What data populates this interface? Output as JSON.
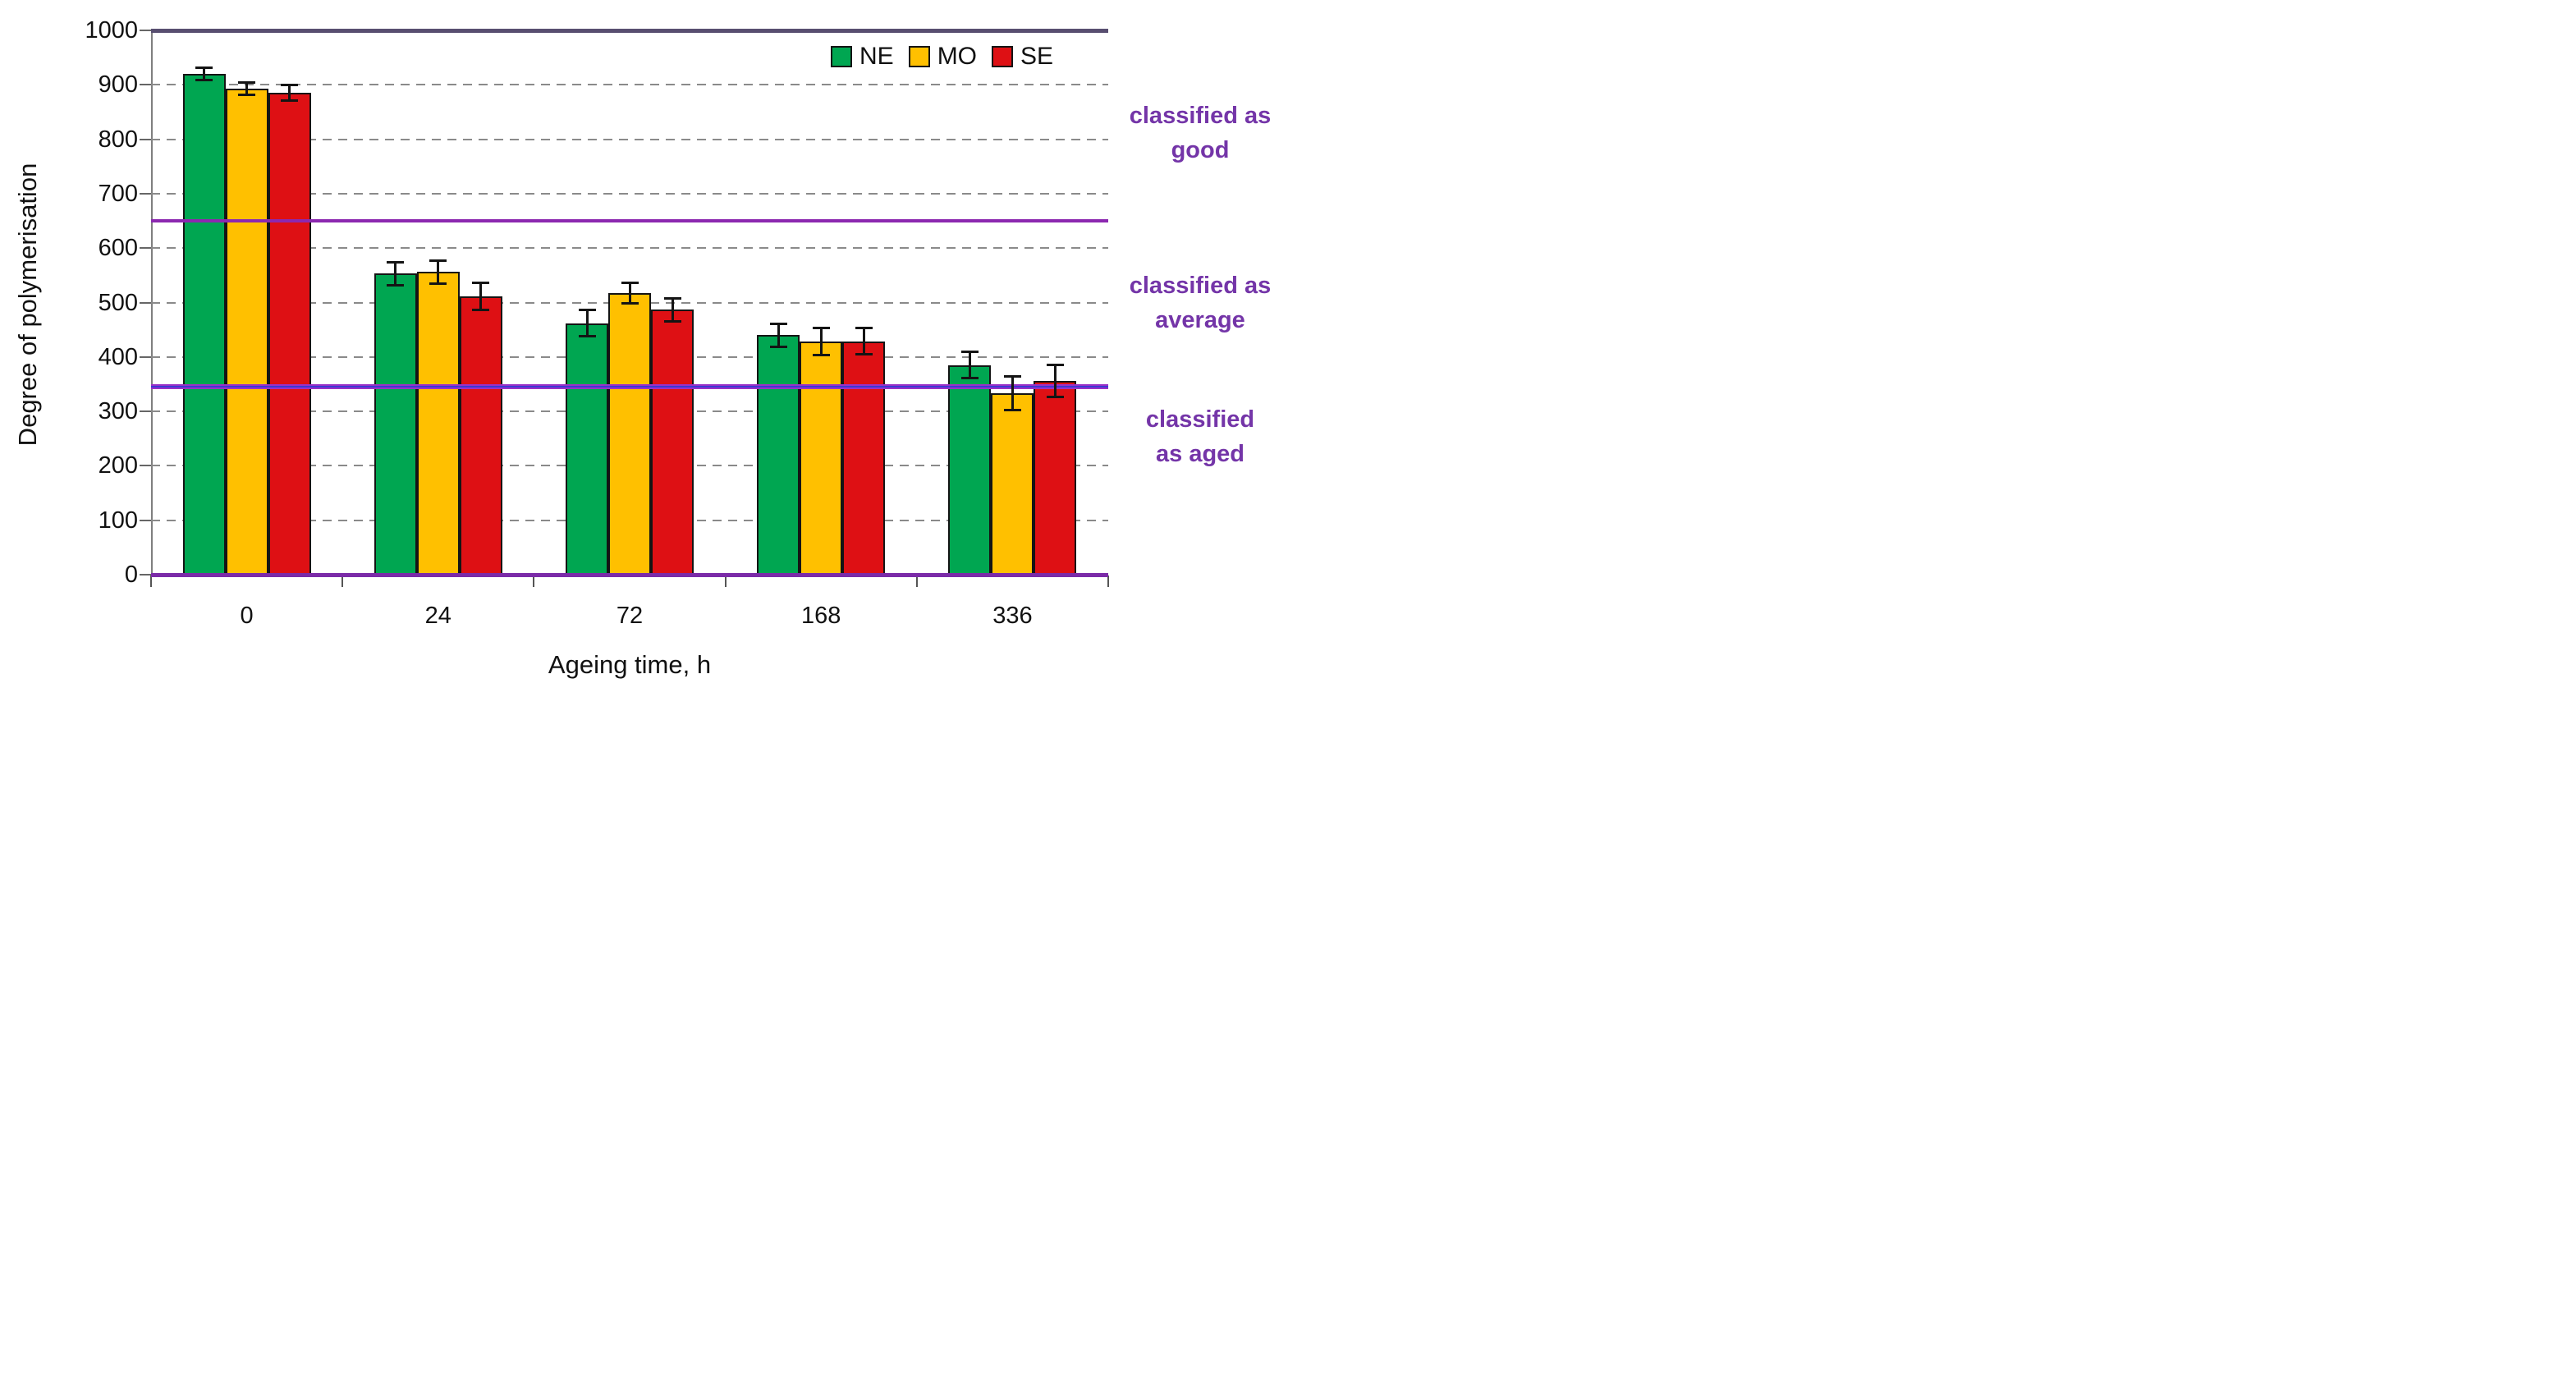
{
  "chart_data": {
    "type": "bar",
    "title": "",
    "xlabel": "Ageing time, h",
    "ylabel": "Degree of polymerisation",
    "categories": [
      "0",
      "24",
      "72",
      "168",
      "336"
    ],
    "series": [
      {
        "name": "NE",
        "color": "#00A651",
        "values": [
          920,
          553,
          462,
          440,
          385
        ],
        "errors": [
          12,
          22,
          25,
          22,
          25
        ]
      },
      {
        "name": "MO",
        "color": "#FFC000",
        "values": [
          893,
          556,
          517,
          428,
          333
        ],
        "errors": [
          12,
          22,
          20,
          26,
          32
        ]
      },
      {
        "name": "SE",
        "color": "#DE1014",
        "values": [
          886,
          511,
          487,
          429,
          356
        ],
        "errors": [
          15,
          26,
          22,
          25,
          30
        ]
      }
    ],
    "ylim": [
      0,
      1000
    ],
    "ytick_interval": 100,
    "ytick_labels": [
      "1000",
      "900",
      "800",
      "700",
      "600",
      "500",
      "400",
      "300",
      "200",
      "100",
      "0"
    ],
    "grid": "dashed horizontal gridlines every 100",
    "legend_position": "top-right inside plot",
    "reference_lines": [
      {
        "value": 1000,
        "color": "#584e70",
        "thickness": 5,
        "style": "solid"
      },
      {
        "value": 650,
        "color": "#8c28b0",
        "thickness": 4,
        "style": "solid"
      },
      {
        "value": 345,
        "color": "#9b30c8",
        "thickness": 6,
        "style": "solid-with-blue-core",
        "core_color": "#3c38d2"
      },
      {
        "value": 0,
        "color": "#7b2ba8",
        "thickness": 5,
        "style": "solid"
      }
    ],
    "zones": [
      {
        "label": "classified as good",
        "range": [
          650,
          1000
        ]
      },
      {
        "label": "classified as average",
        "range": [
          345,
          650
        ]
      },
      {
        "label": "classified as aged",
        "range": [
          0,
          345
        ]
      }
    ]
  },
  "axes": {
    "x_title": "Ageing time, h",
    "y_title": "Degree of polymerisation"
  },
  "legend": {
    "items": [
      {
        "label": "NE",
        "color": "#00A651"
      },
      {
        "label": "MO",
        "color": "#FFC000"
      },
      {
        "label": "SE",
        "color": "#DE1014"
      }
    ]
  },
  "annotations": [
    {
      "line1": "classified as",
      "line2": "good",
      "color": "#7435a8"
    },
    {
      "line1": "classified as",
      "line2": "average",
      "color": "#7435a8"
    },
    {
      "line1": "classified",
      "line2": "as aged",
      "color": "#7435a8"
    }
  ]
}
